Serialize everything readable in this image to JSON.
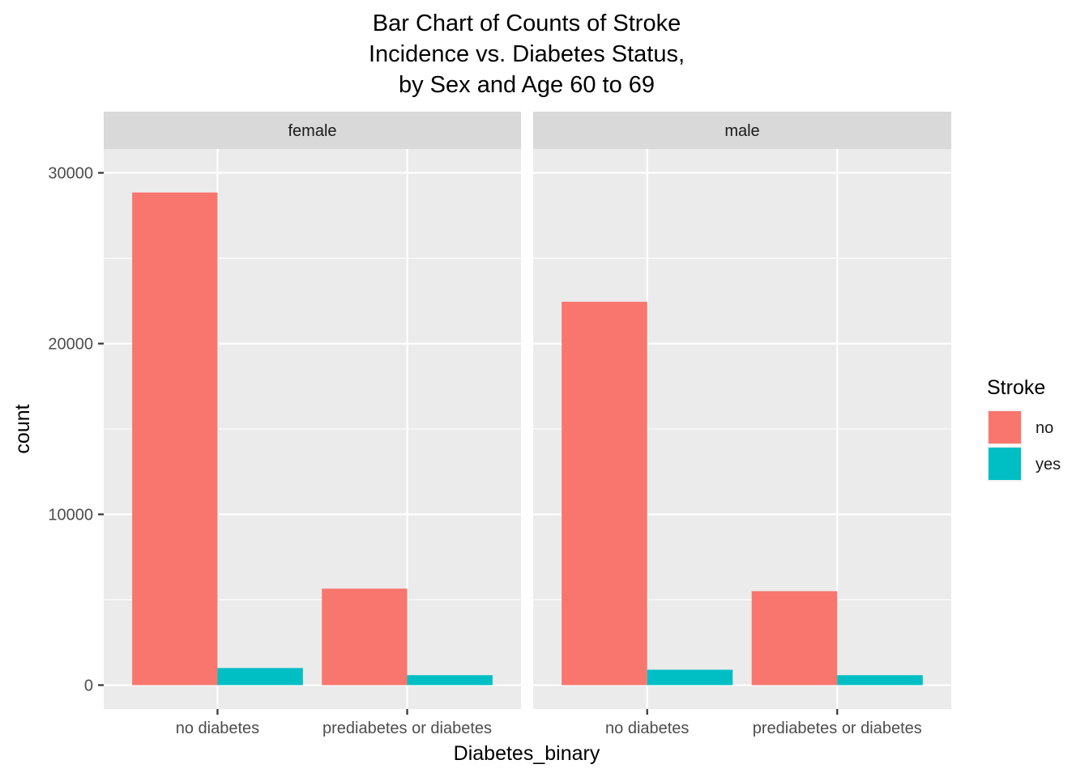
{
  "chart_data": {
    "type": "bar",
    "title_lines": [
      "Bar Chart of Counts of Stroke",
      "Incidence vs. Diabetes Status,",
      "by Sex and Age 60 to 69"
    ],
    "xlabel": "Diabetes_binary",
    "ylabel": "count",
    "ylim": [
      -1400,
      31400
    ],
    "y_ticks": [
      0,
      10000,
      20000,
      30000
    ],
    "y_tick_labels": [
      "0",
      "10000",
      "20000",
      "30000"
    ],
    "categories": [
      "no diabetes",
      "prediabetes or diabetes"
    ],
    "legend": {
      "title": "Stroke",
      "position": "right",
      "entries": [
        {
          "label": "no",
          "color": "#F8766D"
        },
        {
          "label": "yes",
          "color": "#00BFC4"
        }
      ]
    },
    "panels": [
      {
        "facet": "female",
        "series": [
          {
            "name": "no",
            "values": [
              28850,
              5650
            ]
          },
          {
            "name": "yes",
            "values": [
              1000,
              580
            ]
          }
        ]
      },
      {
        "facet": "male",
        "series": [
          {
            "name": "no",
            "values": [
              22450,
              5500
            ]
          },
          {
            "name": "yes",
            "values": [
              900,
              580
            ]
          }
        ]
      }
    ],
    "colors": {
      "panel_background": "#EBEBEB",
      "strip_background": "#D9D9D9",
      "grid": "#FFFFFF",
      "no": "#F8766D",
      "yes": "#00BFC4"
    }
  }
}
